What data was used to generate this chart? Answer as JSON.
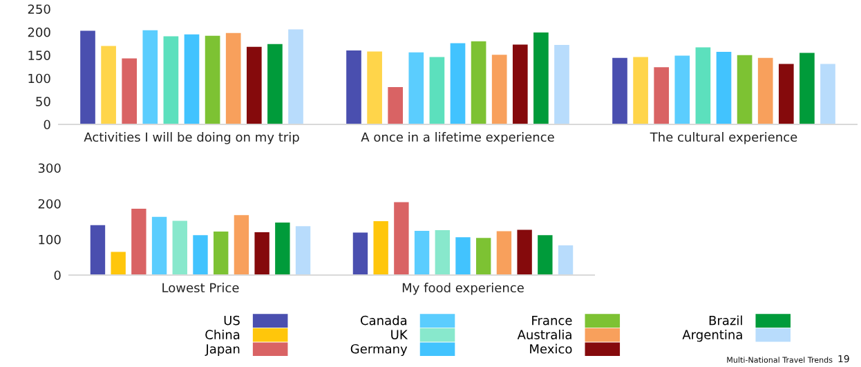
{
  "chart_data": [
    {
      "type": "bar",
      "categories": [
        "Activities I will be doing on my trip",
        "A once in a lifetime experience",
        "The cultural experience"
      ],
      "ylim": [
        0,
        250
      ],
      "yticks": [
        0,
        50,
        100,
        150,
        200,
        250
      ],
      "grid": false,
      "legend": false,
      "series": [
        {
          "color": "#4a4faf",
          "values": [
            203,
            160,
            144
          ]
        },
        {
          "color": "#ffd54a",
          "values": [
            170,
            158,
            146
          ]
        },
        {
          "color": "#d96364",
          "values": [
            143,
            81,
            124
          ]
        },
        {
          "color": "#5bcdfe",
          "values": [
            204,
            156,
            149
          ]
        },
        {
          "color": "#5ce0bd",
          "values": [
            191,
            146,
            167
          ]
        },
        {
          "color": "#42c3fe",
          "values": [
            195,
            176,
            157
          ]
        },
        {
          "color": "#7dc233",
          "values": [
            192,
            180,
            150
          ]
        },
        {
          "color": "#f8a05c",
          "values": [
            198,
            151,
            144
          ]
        },
        {
          "color": "#850a0c",
          "values": [
            168,
            173,
            131
          ]
        },
        {
          "color": "#009b3a",
          "values": [
            174,
            199,
            155
          ]
        },
        {
          "color": "#b8dcfc",
          "values": [
            206,
            172,
            131
          ]
        }
      ]
    },
    {
      "type": "bar",
      "categories": [
        "Lowest Price",
        "My food experience"
      ],
      "ylim": [
        0,
        300
      ],
      "yticks": [
        0,
        100,
        200,
        300
      ],
      "grid": false,
      "legend": "bottom",
      "series": [
        {
          "name": "US",
          "color": "#4a4faf",
          "values": [
            140,
            119
          ]
        },
        {
          "name": "China",
          "color": "#ffc60b",
          "values": [
            65,
            151
          ]
        },
        {
          "name": "Japan",
          "color": "#d96364",
          "values": [
            186,
            204
          ]
        },
        {
          "name": "Canada",
          "color": "#5bcdfe",
          "values": [
            163,
            124
          ]
        },
        {
          "name": "UK",
          "color": "#88e8cc",
          "values": [
            152,
            126
          ]
        },
        {
          "name": "Germany",
          "color": "#42c3fe",
          "values": [
            112,
            106
          ]
        },
        {
          "name": "France",
          "color": "#7dc233",
          "values": [
            122,
            104
          ]
        },
        {
          "name": "Australia",
          "color": "#f8a05c",
          "values": [
            168,
            123
          ]
        },
        {
          "name": "Mexico",
          "color": "#850a0c",
          "values": [
            120,
            127
          ]
        },
        {
          "name": "Brazil",
          "color": "#009b3a",
          "values": [
            147,
            112
          ]
        },
        {
          "name": "Argentina",
          "color": "#b8dcfc",
          "values": [
            137,
            83
          ]
        }
      ],
      "annotations": [
        "Multi-National Travel Trends",
        "19"
      ]
    }
  ]
}
